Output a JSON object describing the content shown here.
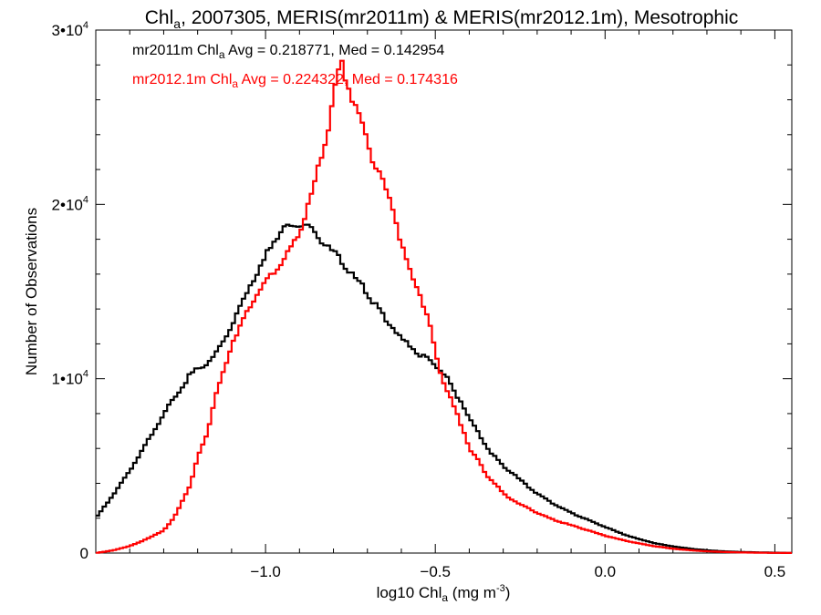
{
  "chart_data": {
    "type": "histogram",
    "title": {
      "main": "Chl",
      "sub": "a",
      "rest": ", 2007305, MERIS(mr2011m) & MERIS(mr2012.1m), Mesotrophic"
    },
    "xlabel": {
      "main": "log10 Chl",
      "sub": "a",
      "rest": " (mg m",
      "sup": "-3",
      "close": ")"
    },
    "ylabel": "Number of Observations",
    "xlim": [
      -1.5,
      0.55
    ],
    "ylim": [
      0,
      30000
    ],
    "x_ticks": [
      {
        "value": -1.0,
        "label": "−1.0"
      },
      {
        "value": -0.5,
        "label": "−0.5"
      },
      {
        "value": 0.0,
        "label": "0.0"
      },
      {
        "value": 0.5,
        "label": "0.5"
      }
    ],
    "y_ticks": [
      {
        "value": 0,
        "label": "0",
        "sup": ""
      },
      {
        "value": 10000,
        "label": "1•10",
        "sup": "4"
      },
      {
        "value": 20000,
        "label": "2•10",
        "sup": "4"
      },
      {
        "value": 30000,
        "label": "3•10",
        "sup": "4"
      }
    ],
    "bin_width": 0.01,
    "series": [
      {
        "color": "#000000",
        "legend": {
          "pre": "mr2011m Chl",
          "sub": "a",
          "post": " Avg = 0.218771, Med = 0.142954"
        },
        "points": [
          [
            -1.5,
            2000
          ],
          [
            -1.45,
            3300
          ],
          [
            -1.4,
            4700
          ],
          [
            -1.35,
            6300
          ],
          [
            -1.3,
            8000
          ],
          [
            -1.25,
            9400
          ],
          [
            -1.22,
            10300
          ],
          [
            -1.18,
            10800
          ],
          [
            -1.15,
            11300
          ],
          [
            -1.12,
            12400
          ],
          [
            -1.08,
            13800
          ],
          [
            -1.05,
            15300
          ],
          [
            -1.02,
            16200
          ],
          [
            -1.0,
            17000
          ],
          [
            -0.98,
            17800
          ],
          [
            -0.95,
            18500
          ],
          [
            -0.92,
            18800
          ],
          [
            -0.9,
            18900
          ],
          [
            -0.88,
            18700
          ],
          [
            -0.85,
            18300
          ],
          [
            -0.82,
            17600
          ],
          [
            -0.8,
            17300
          ],
          [
            -0.78,
            16800
          ],
          [
            -0.75,
            16000
          ],
          [
            -0.72,
            15500
          ],
          [
            -0.7,
            14900
          ],
          [
            -0.68,
            14300
          ],
          [
            -0.65,
            13500
          ],
          [
            -0.62,
            12900
          ],
          [
            -0.6,
            12300
          ],
          [
            -0.57,
            11800
          ],
          [
            -0.55,
            11400
          ],
          [
            -0.52,
            11100
          ],
          [
            -0.5,
            10800
          ],
          [
            -0.47,
            10200
          ],
          [
            -0.45,
            9400
          ],
          [
            -0.42,
            8600
          ],
          [
            -0.4,
            7700
          ],
          [
            -0.37,
            6800
          ],
          [
            -0.35,
            6100
          ],
          [
            -0.3,
            5000
          ],
          [
            -0.25,
            4200
          ],
          [
            -0.2,
            3400
          ],
          [
            -0.15,
            2800
          ],
          [
            -0.1,
            2300
          ],
          [
            -0.05,
            1900
          ],
          [
            0.0,
            1500
          ],
          [
            0.05,
            1100
          ],
          [
            0.1,
            800
          ],
          [
            0.15,
            550
          ],
          [
            0.2,
            380
          ],
          [
            0.25,
            250
          ],
          [
            0.3,
            160
          ],
          [
            0.35,
            100
          ],
          [
            0.4,
            60
          ],
          [
            0.45,
            40
          ],
          [
            0.5,
            20
          ],
          [
            0.55,
            10
          ]
        ]
      },
      {
        "color": "#ff0000",
        "legend": {
          "pre": "mr2012.1m Chl",
          "sub": "a",
          "post": " Avg = 0.224322, Med = 0.174316"
        },
        "points": [
          [
            -1.5,
            0
          ],
          [
            -1.45,
            150
          ],
          [
            -1.4,
            400
          ],
          [
            -1.35,
            800
          ],
          [
            -1.3,
            1300
          ],
          [
            -1.27,
            2000
          ],
          [
            -1.25,
            2800
          ],
          [
            -1.22,
            4000
          ],
          [
            -1.2,
            5500
          ],
          [
            -1.17,
            7000
          ],
          [
            -1.15,
            8800
          ],
          [
            -1.12,
            10600
          ],
          [
            -1.1,
            12000
          ],
          [
            -1.07,
            13200
          ],
          [
            -1.05,
            14100
          ],
          [
            -1.02,
            15000
          ],
          [
            -1.0,
            15500
          ],
          [
            -0.98,
            16000
          ],
          [
            -0.95,
            16700
          ],
          [
            -0.92,
            17600
          ],
          [
            -0.9,
            18500
          ],
          [
            -0.88,
            19500
          ],
          [
            -0.86,
            20800
          ],
          [
            -0.84,
            22400
          ],
          [
            -0.82,
            24000
          ],
          [
            -0.8,
            26000
          ],
          [
            -0.79,
            27200
          ],
          [
            -0.78,
            28100
          ],
          [
            -0.77,
            27800
          ],
          [
            -0.76,
            27000
          ],
          [
            -0.75,
            26300
          ],
          [
            -0.73,
            25500
          ],
          [
            -0.72,
            24800
          ],
          [
            -0.7,
            23700
          ],
          [
            -0.68,
            22300
          ],
          [
            -0.65,
            21000
          ],
          [
            -0.62,
            19500
          ],
          [
            -0.6,
            17700
          ],
          [
            -0.58,
            16400
          ],
          [
            -0.55,
            15100
          ],
          [
            -0.52,
            13400
          ],
          [
            -0.5,
            11600
          ],
          [
            -0.48,
            10000
          ],
          [
            -0.45,
            8600
          ],
          [
            -0.42,
            7200
          ],
          [
            -0.4,
            6000
          ],
          [
            -0.37,
            5200
          ],
          [
            -0.35,
            4500
          ],
          [
            -0.32,
            3900
          ],
          [
            -0.3,
            3400
          ],
          [
            -0.25,
            2800
          ],
          [
            -0.2,
            2300
          ],
          [
            -0.15,
            1900
          ],
          [
            -0.1,
            1600
          ],
          [
            -0.05,
            1300
          ],
          [
            0.0,
            1000
          ],
          [
            0.05,
            750
          ],
          [
            0.1,
            550
          ],
          [
            0.15,
            380
          ],
          [
            0.2,
            250
          ],
          [
            0.25,
            160
          ],
          [
            0.3,
            100
          ],
          [
            0.35,
            60
          ],
          [
            0.4,
            35
          ],
          [
            0.45,
            20
          ],
          [
            0.5,
            10
          ],
          [
            0.55,
            5
          ]
        ]
      }
    ]
  }
}
